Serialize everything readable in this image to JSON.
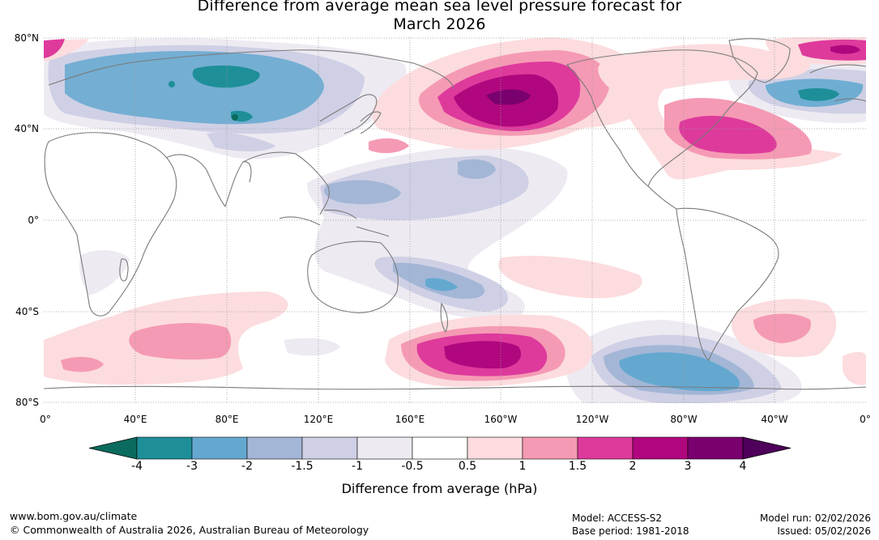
{
  "title_line1": "Difference from average mean sea level pressure forecast for",
  "title_line2": "March 2026",
  "latitude_labels": [
    "80°N",
    "40°N",
    "0°",
    "40°S",
    "80°S"
  ],
  "longitude_labels": [
    "0°",
    "40°E",
    "80°E",
    "120°E",
    "160°E",
    "160°W",
    "120°W",
    "80°W",
    "40°W",
    "0°"
  ],
  "colorbar": {
    "ticks": [
      "-4",
      "-3",
      "-2",
      "-1.5",
      "-1",
      "-0.5",
      "0.5",
      "1",
      "1.5",
      "2",
      "3",
      "4"
    ],
    "colors": [
      "#0b6b5e",
      "#1e8f98",
      "#64a8d0",
      "#a3b6d6",
      "#cfd0e5",
      "#eeeaf2",
      "#ffffff",
      "#fcdcde",
      "#f59ab4",
      "#de3a9c",
      "#b0077e",
      "#7a006f",
      "#4e005b"
    ],
    "title": "Difference from average (hPa)"
  },
  "footer": {
    "website": "www.bom.gov.au/climate",
    "copyright": "© Commonwealth of Australia 2026, Australian Bureau of Meteorology",
    "model": "Model: ACCESS-S2",
    "base_period": "Base period: 1981-2018",
    "model_run": "Model run: 02/02/2026",
    "issued": "Issued: 05/02/2026"
  },
  "map_layers": [
    "negative-anomaly-eurasia",
    "negative-anomaly-west-pacific",
    "negative-anomaly-north-atlantic",
    "negative-anomaly-southern-ocean",
    "positive-anomaly-north-pacific",
    "positive-anomaly-north-america",
    "positive-anomaly-south-pacific",
    "positive-anomaly-south-indian",
    "positive-anomaly-south-atlantic"
  ]
}
